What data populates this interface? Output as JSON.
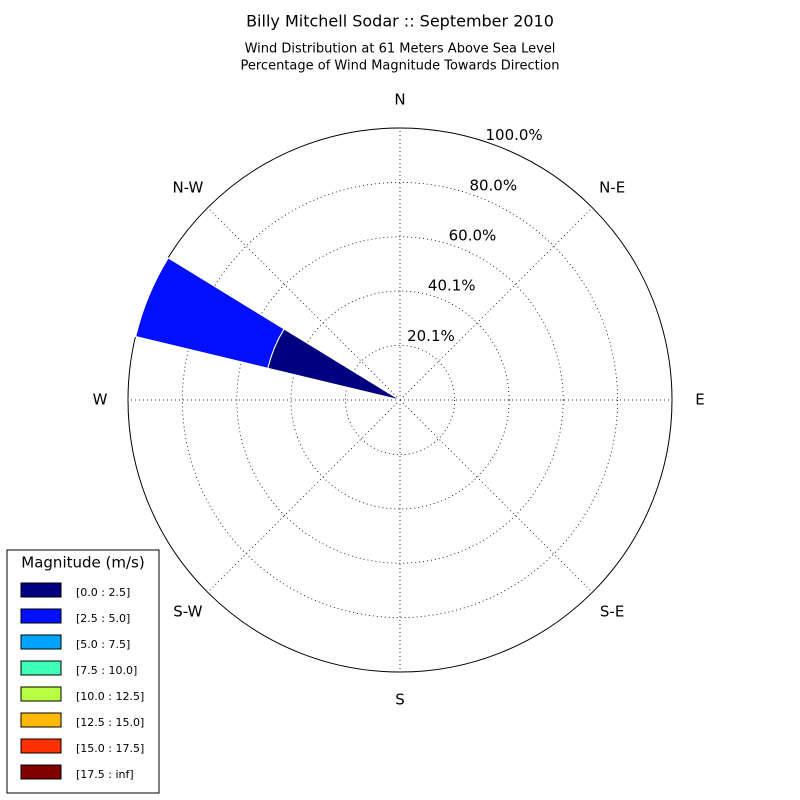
{
  "chart_data": {
    "type": "windrose",
    "title": "Billy Mitchell Sodar :: September 2010",
    "subtitle": [
      "Wind Distribution at 61 Meters Above Sea Level",
      "Percentage of Wind Magnitude Towards Direction"
    ],
    "categories": [
      "N",
      null,
      "N-E",
      null,
      "E",
      null,
      "S-E",
      null,
      "S",
      null,
      "S-W",
      null,
      "W",
      null,
      "N-W",
      null
    ],
    "rlim": [
      0,
      100
    ],
    "rticks": [
      {
        "value": 20.1,
        "label": "20.1%"
      },
      {
        "value": 40.1,
        "label": "40.1%"
      },
      {
        "value": 60.0,
        "label": "60.0%"
      },
      {
        "value": 80.0,
        "label": "80.0%"
      },
      {
        "value": 100.0,
        "label": "100.0%"
      }
    ],
    "legend_title": "Magnitude (m/s)",
    "legend_position": "lower left",
    "series": [
      {
        "name": "[0.0 : 2.5]",
        "color": "#000080",
        "values": [
          0,
          0,
          0,
          0,
          0,
          0,
          0,
          0,
          0,
          0,
          0,
          0,
          0,
          50,
          0,
          0
        ]
      },
      {
        "name": "[2.5 : 5.0]",
        "color": "#0010ff",
        "values": [
          0,
          0,
          0,
          0,
          0,
          0,
          0,
          0,
          0,
          0,
          0,
          0,
          0,
          50,
          0,
          0
        ]
      },
      {
        "name": "[5.0 : 7.5]",
        "color": "#00a4ff",
        "values": [
          0,
          0,
          0,
          0,
          0,
          0,
          0,
          0,
          0,
          0,
          0,
          0,
          0,
          0,
          0,
          0
        ]
      },
      {
        "name": "[7.5 : 10.0]",
        "color": "#40ffb7",
        "values": [
          0,
          0,
          0,
          0,
          0,
          0,
          0,
          0,
          0,
          0,
          0,
          0,
          0,
          0,
          0,
          0
        ]
      },
      {
        "name": "[10.0 : 12.5]",
        "color": "#b7ff40",
        "values": [
          0,
          0,
          0,
          0,
          0,
          0,
          0,
          0,
          0,
          0,
          0,
          0,
          0,
          0,
          0,
          0
        ]
      },
      {
        "name": "[12.5 : 15.0]",
        "color": "#ffb900",
        "values": [
          0,
          0,
          0,
          0,
          0,
          0,
          0,
          0,
          0,
          0,
          0,
          0,
          0,
          0,
          0,
          0
        ]
      },
      {
        "name": "[15.0 : 17.5]",
        "color": "#ff3000",
        "values": [
          0,
          0,
          0,
          0,
          0,
          0,
          0,
          0,
          0,
          0,
          0,
          0,
          0,
          0,
          0,
          0
        ]
      },
      {
        "name": "[17.5 : inf]",
        "color": "#800000",
        "values": [
          0,
          0,
          0,
          0,
          0,
          0,
          0,
          0,
          0,
          0,
          0,
          0,
          0,
          0,
          0,
          0
        ]
      }
    ]
  }
}
